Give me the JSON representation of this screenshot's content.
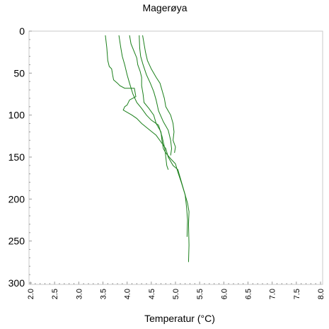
{
  "chart_data": {
    "type": "line",
    "title": "Magerøya",
    "xlabel": "Temperatur (°C)",
    "ylabel": "",
    "xlim": [
      2.0,
      8.0
    ],
    "ylim": [
      300,
      0
    ],
    "y_inverted": true,
    "grid": false,
    "x_ticks": [
      "2.0",
      "2.5",
      "3.0",
      "3.5",
      "4.0",
      "4.5",
      "5.0",
      "5.5",
      "6.0",
      "6.5",
      "7.0",
      "7.5",
      "8.0"
    ],
    "y_ticks": [
      "0",
      "50",
      "100",
      "150",
      "200",
      "250",
      "300"
    ],
    "line_color": "#1a7f1a",
    "series": [
      {
        "points": [
          [
            3.55,
            5
          ],
          [
            3.58,
            20
          ],
          [
            3.6,
            35
          ],
          [
            3.63,
            42
          ],
          [
            3.68,
            45
          ],
          [
            3.7,
            52
          ],
          [
            3.72,
            58
          ],
          [
            3.8,
            62
          ],
          [
            3.85,
            65
          ],
          [
            3.95,
            68
          ],
          [
            4.15,
            68
          ],
          [
            4.18,
            78
          ],
          [
            4.05,
            82
          ],
          [
            4.0,
            88
          ],
          [
            3.95,
            90
          ],
          [
            3.92,
            94
          ],
          [
            3.98,
            96
          ],
          [
            4.1,
            100
          ],
          [
            4.2,
            104
          ],
          [
            4.3,
            110
          ],
          [
            4.45,
            117
          ],
          [
            4.6,
            124
          ],
          [
            4.7,
            132
          ],
          [
            4.8,
            140
          ],
          [
            4.85,
            150
          ],
          [
            4.95,
            160
          ],
          [
            5.05,
            165
          ],
          [
            5.1,
            175
          ],
          [
            5.15,
            185
          ],
          [
            5.2,
            195
          ],
          [
            5.25,
            205
          ],
          [
            5.28,
            215
          ],
          [
            5.27,
            230
          ],
          [
            5.28,
            255
          ],
          [
            5.27,
            275
          ]
        ]
      },
      {
        "points": [
          [
            3.83,
            5
          ],
          [
            3.87,
            20
          ],
          [
            3.9,
            30
          ],
          [
            3.95,
            40
          ],
          [
            4.0,
            52
          ],
          [
            4.05,
            62
          ],
          [
            4.12,
            75
          ],
          [
            4.2,
            85
          ],
          [
            4.3,
            92
          ],
          [
            4.4,
            100
          ],
          [
            4.5,
            106
          ],
          [
            4.65,
            112
          ],
          [
            4.72,
            125
          ],
          [
            4.78,
            140
          ],
          [
            4.8,
            150
          ],
          [
            4.82,
            160
          ],
          [
            4.85,
            165
          ]
        ]
      },
      {
        "points": [
          [
            4.05,
            5
          ],
          [
            4.08,
            15
          ],
          [
            4.15,
            25
          ],
          [
            4.2,
            32
          ],
          [
            4.22,
            40
          ],
          [
            4.27,
            48
          ],
          [
            4.3,
            55
          ],
          [
            4.3,
            65
          ],
          [
            4.33,
            75
          ],
          [
            4.35,
            85
          ],
          [
            4.45,
            92
          ],
          [
            4.55,
            100
          ],
          [
            4.6,
            110
          ],
          [
            4.7,
            120
          ],
          [
            4.72,
            130
          ],
          [
            4.75,
            140
          ],
          [
            4.8,
            145
          ],
          [
            4.9,
            152
          ],
          [
            5.0,
            158
          ],
          [
            5.05,
            168
          ],
          [
            5.12,
            180
          ],
          [
            5.2,
            195
          ],
          [
            5.23,
            210
          ],
          [
            5.25,
            225
          ],
          [
            5.24,
            245
          ]
        ]
      },
      {
        "points": [
          [
            4.25,
            5
          ],
          [
            4.26,
            20
          ],
          [
            4.28,
            30
          ],
          [
            4.33,
            40
          ],
          [
            4.4,
            52
          ],
          [
            4.48,
            62
          ],
          [
            4.55,
            72
          ],
          [
            4.6,
            82
          ],
          [
            4.65,
            95
          ],
          [
            4.75,
            108
          ],
          [
            4.85,
            118
          ],
          [
            4.9,
            130
          ],
          [
            4.92,
            140
          ],
          [
            4.9,
            148
          ]
        ]
      },
      {
        "points": [
          [
            4.32,
            5
          ],
          [
            4.35,
            15
          ],
          [
            4.38,
            25
          ],
          [
            4.42,
            35
          ],
          [
            4.5,
            45
          ],
          [
            4.6,
            55
          ],
          [
            4.68,
            62
          ],
          [
            4.72,
            70
          ],
          [
            4.77,
            80
          ],
          [
            4.8,
            90
          ],
          [
            4.9,
            100
          ],
          [
            4.95,
            110
          ],
          [
            4.97,
            120
          ],
          [
            4.95,
            130
          ],
          [
            5.0,
            138
          ],
          [
            4.98,
            145
          ]
        ]
      }
    ]
  }
}
